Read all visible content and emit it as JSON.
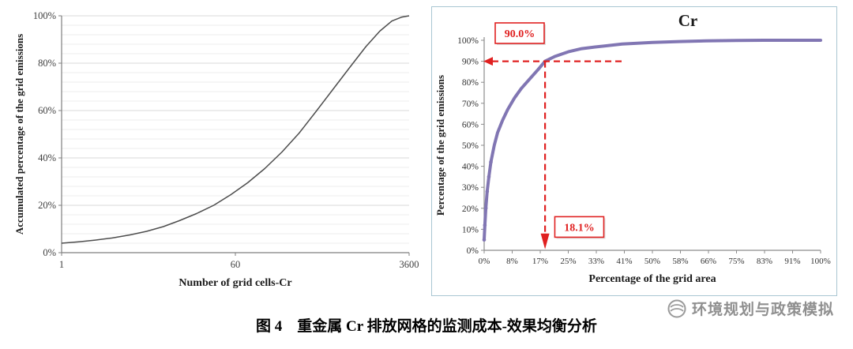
{
  "caption": "图 4　重金属 Cr 排放网格的监测成本-效果均衡分析",
  "watermark": {
    "text": "环境规划与政策模拟"
  },
  "colors": {
    "left_curve": "#4d4d4d",
    "right_curve": "#8176b3",
    "annotation_red": "#e02020",
    "panel_border": "#a9c6d2",
    "watermark_gray": "#9a9a9a"
  },
  "chart_data": [
    {
      "type": "line",
      "title": "",
      "xlabel": "Number of grid cells-Cr",
      "ylabel": "Accumulated percentage of the grid emissions",
      "x_scale": "log",
      "xlim": [
        1,
        3600
      ],
      "ylim": [
        0,
        100
      ],
      "x_ticks": [
        "1",
        "60",
        "3600"
      ],
      "y_ticks": [
        "0%",
        "20%",
        "40%",
        "60%",
        "80%",
        "100%"
      ],
      "grid": "horizontal-minor",
      "legend": "none",
      "x": [
        1,
        1.5,
        2.2,
        3.3,
        5,
        7.4,
        11,
        16,
        24,
        36,
        54,
        80,
        120,
        180,
        270,
        400,
        600,
        900,
        1300,
        1800,
        2400,
        3000,
        3600
      ],
      "y": [
        4,
        4.6,
        5.3,
        6.2,
        7.5,
        9,
        11,
        13.5,
        16.5,
        20,
        24.5,
        29.5,
        35.5,
        42.5,
        50.5,
        59.5,
        69,
        78.5,
        87,
        93.5,
        97.8,
        99.4,
        100
      ]
    },
    {
      "type": "line",
      "title": "Cr",
      "xlabel": "Percentage of the grid area",
      "ylabel": "Percentage of the grid emissions",
      "x_scale": "linear",
      "xlim": [
        0,
        100
      ],
      "ylim": [
        0,
        100
      ],
      "x_ticks": [
        "0%",
        "8%",
        "17%",
        "25%",
        "33%",
        "41%",
        "50%",
        "58%",
        "66%",
        "75%",
        "83%",
        "91%",
        "100%"
      ],
      "y_ticks": [
        "0%",
        "10%",
        "20%",
        "30%",
        "40%",
        "50%",
        "60%",
        "70%",
        "80%",
        "90%",
        "100%"
      ],
      "grid": "none",
      "legend": "none",
      "x": [
        0,
        0.2,
        0.5,
        0.9,
        1.4,
        2,
        3,
        4,
        5.5,
        7,
        9,
        11,
        13.5,
        16,
        18.1,
        21,
        25,
        29,
        33,
        41,
        50,
        58,
        66,
        75,
        83,
        91,
        100
      ],
      "y": [
        5,
        12,
        20,
        28,
        35,
        42,
        50,
        56,
        62,
        67,
        72.5,
        77,
        81.5,
        86,
        90,
        92.3,
        94.5,
        96,
        96.8,
        98.2,
        99,
        99.4,
        99.7,
        99.9,
        100,
        100,
        100
      ],
      "annotations": [
        {
          "type": "hline",
          "value": 90,
          "label": "90.0%"
        },
        {
          "type": "vline",
          "value": 18.1,
          "label": "18.1%"
        }
      ]
    }
  ]
}
